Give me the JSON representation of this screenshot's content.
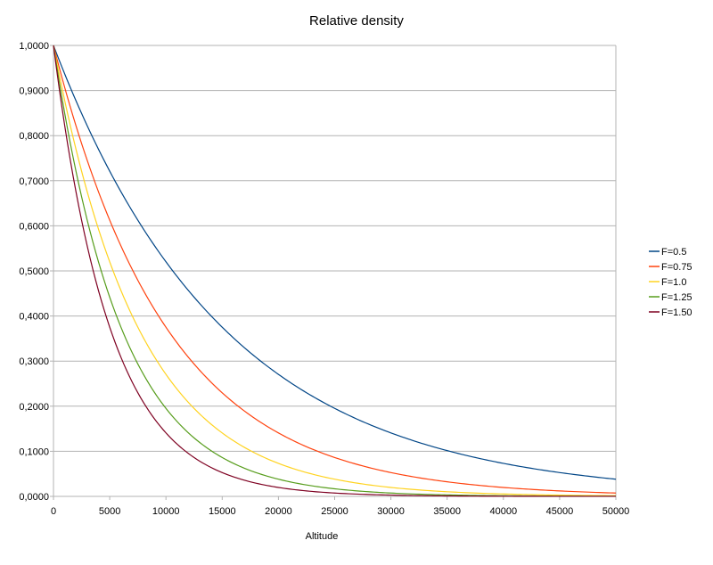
{
  "chart_data": {
    "type": "line",
    "title": "Relative density",
    "xlabel": "Altitude",
    "ylabel": "",
    "xlim": [
      0,
      50000
    ],
    "ylim": [
      0,
      1
    ],
    "grid": true,
    "legend_position": "right",
    "x_ticks": [
      "0",
      "5000",
      "10000",
      "15000",
      "20000",
      "25000",
      "30000",
      "35000",
      "40000",
      "45000",
      "50000"
    ],
    "y_ticks": [
      "0,0000",
      "0,1000",
      "0,2000",
      "0,3000",
      "0,4000",
      "0,5000",
      "0,6000",
      "0,7000",
      "0,8000",
      "0,9000",
      "1,0000"
    ],
    "x": [
      0,
      2500,
      5000,
      7500,
      10000,
      12500,
      15000,
      17500,
      20000,
      22500,
      25000,
      27500,
      30000,
      32500,
      35000,
      37500,
      40000,
      42500,
      45000,
      47500,
      50000
    ],
    "series": [
      {
        "name": "F=0.5",
        "color": "#004586",
        "values": [
          1,
          0.8492,
          0.7212,
          0.6125,
          0.5202,
          0.4418,
          0.3752,
          0.3186,
          0.2706,
          0.2298,
          0.1952,
          0.1657,
          0.1408,
          0.1195,
          0.1015,
          0.0862,
          0.0732,
          0.0622,
          0.0528,
          0.0449,
          0.0381
        ]
      },
      {
        "name": "F=0.75",
        "color": "#ff420e",
        "values": [
          1,
          0.7826,
          0.6125,
          0.4793,
          0.3751,
          0.2936,
          0.2297,
          0.1798,
          0.1407,
          0.1101,
          0.0862,
          0.0675,
          0.0528,
          0.0413,
          0.0323,
          0.0253,
          0.0198,
          0.0155,
          0.0121,
          0.0095,
          0.0074
        ]
      },
      {
        "name": "F=1.0",
        "color": "#ffd320",
        "values": [
          1,
          0.7212,
          0.5202,
          0.3752,
          0.2706,
          0.1951,
          0.1407,
          0.1015,
          0.0732,
          0.0528,
          0.0381,
          0.0275,
          0.0198,
          0.0143,
          0.0103,
          0.0074,
          0.0054,
          0.0039,
          0.0028,
          0.002,
          0.0015
        ]
      },
      {
        "name": "F=1.25",
        "color": "#579d1c",
        "values": [
          1,
          0.6646,
          0.4417,
          0.2936,
          0.1951,
          0.1297,
          0.0862,
          0.0573,
          0.0381,
          0.0253,
          0.0168,
          0.0112,
          0.0074,
          0.0049,
          0.0033,
          0.0022,
          0.0015,
          0.001,
          0.0006,
          0.0004,
          0.0003
        ]
      },
      {
        "name": "F=1.50",
        "color": "#7e0021",
        "values": [
          1,
          0.6125,
          0.3752,
          0.2298,
          0.1408,
          0.0862,
          0.0528,
          0.0323,
          0.0198,
          0.0121,
          0.0074,
          0.0046,
          0.0028,
          0.0017,
          0.001,
          0.0006,
          0.0004,
          0.0002,
          0.0001,
          0.0001,
          0.0001
        ]
      }
    ]
  }
}
